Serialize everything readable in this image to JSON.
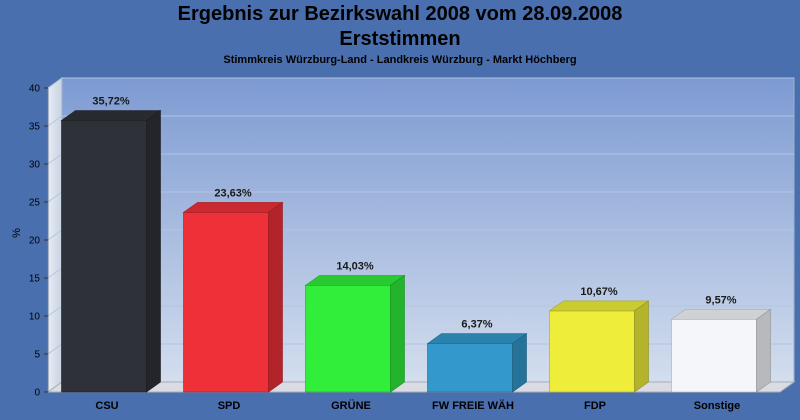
{
  "title": "Ergebnis zur Bezirkswahl 2008 vom 28.09.2008",
  "subtitle": "Erststimmen",
  "caption": "Stimmkreis Würzburg-Land - Landkreis Würzburg - Markt Höchberg",
  "chart_data": {
    "type": "bar",
    "title": "Ergebnis zur Bezirkswahl 2008 vom 28.09.2008",
    "subtitle": "Erststimmen",
    "xlabel": "",
    "ylabel": "%",
    "ylim": [
      0,
      40
    ],
    "yticks": [
      0,
      5,
      10,
      15,
      20,
      25,
      30,
      35,
      40
    ],
    "grid": true,
    "categories": [
      "CSU",
      "SPD",
      "GRÜNE",
      "FW FREIE WÄH",
      "FDP",
      "Sonstige"
    ],
    "values": [
      35.72,
      23.63,
      14.03,
      6.37,
      10.67,
      9.57
    ],
    "value_labels": [
      "35,72%",
      "23,63%",
      "14,03%",
      "6,37%",
      "10,67%",
      "9,57%"
    ],
    "colors": [
      "#2e3138",
      "#ee3038",
      "#30ee3a",
      "#3399cc",
      "#eeee3a",
      "#f4f6fa"
    ]
  }
}
